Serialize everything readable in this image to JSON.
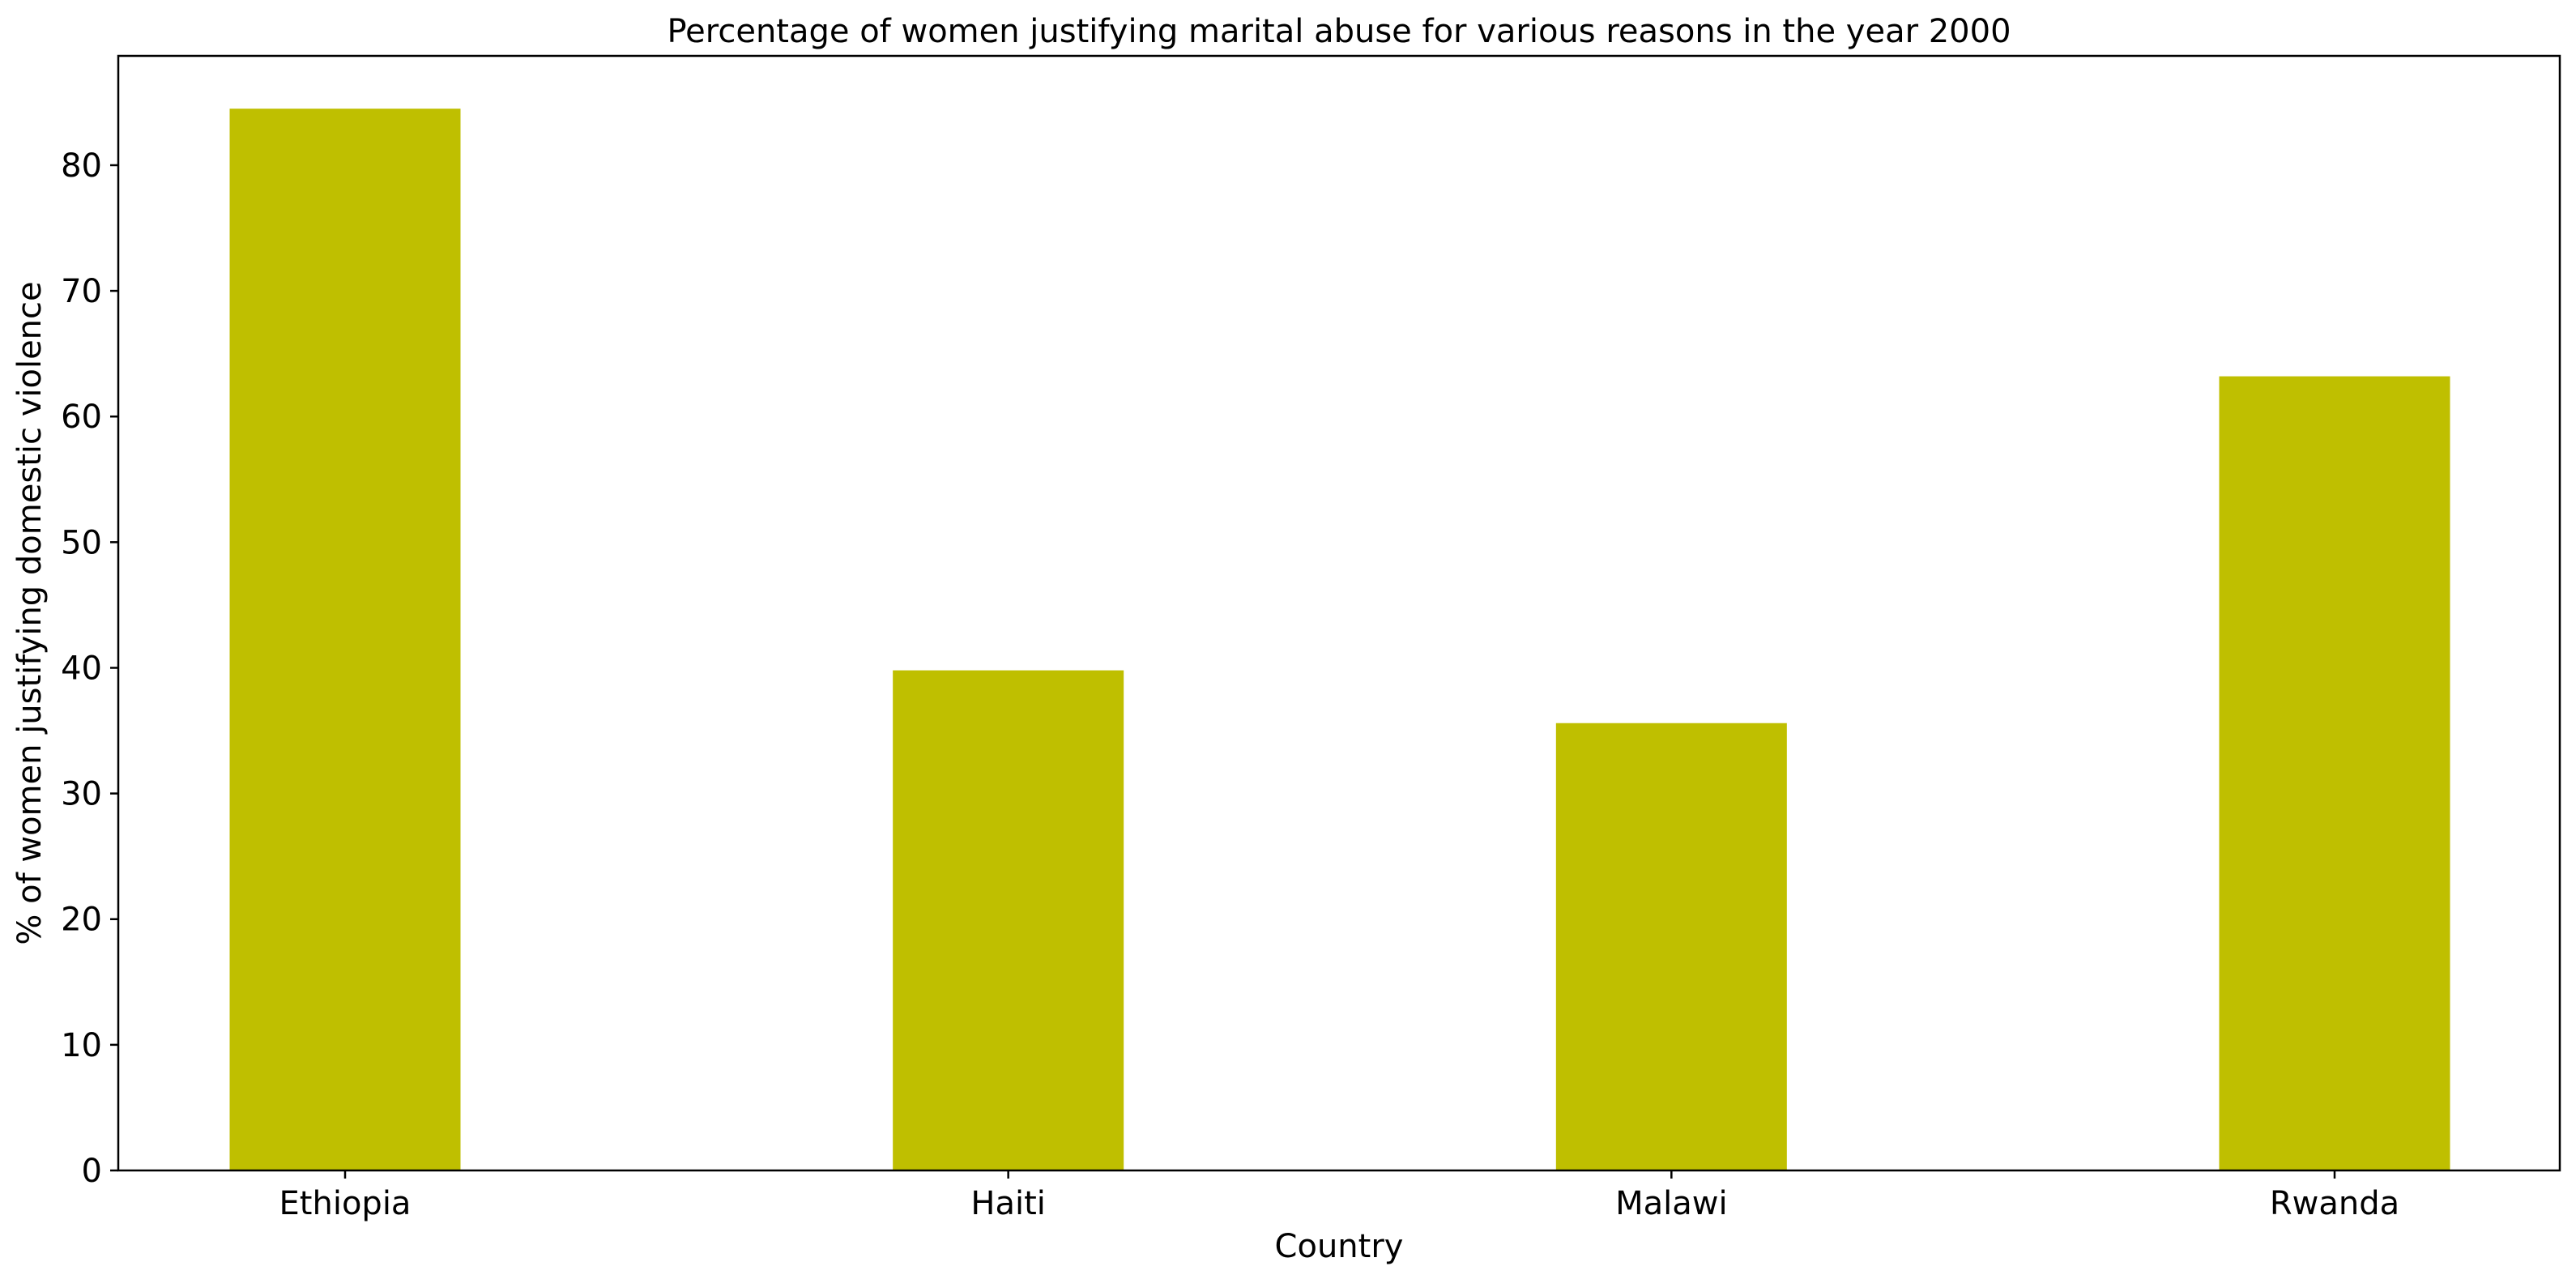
{
  "chart_data": {
    "type": "bar",
    "title": "Percentage of women justifying marital abuse for various reasons in the year 2000",
    "xlabel": "Country",
    "ylabel": "% of women justifying domestic violence",
    "categories": [
      "Ethiopia",
      "Haiti",
      "Malawi",
      "Rwanda"
    ],
    "values": [
      84.5,
      39.8,
      35.6,
      63.2
    ],
    "ylim": [
      0,
      88.7
    ],
    "yticks": [
      0,
      10,
      20,
      30,
      40,
      50,
      60,
      70,
      80
    ],
    "grid": false,
    "legend": "none",
    "bar_color": "#bfbf00"
  }
}
